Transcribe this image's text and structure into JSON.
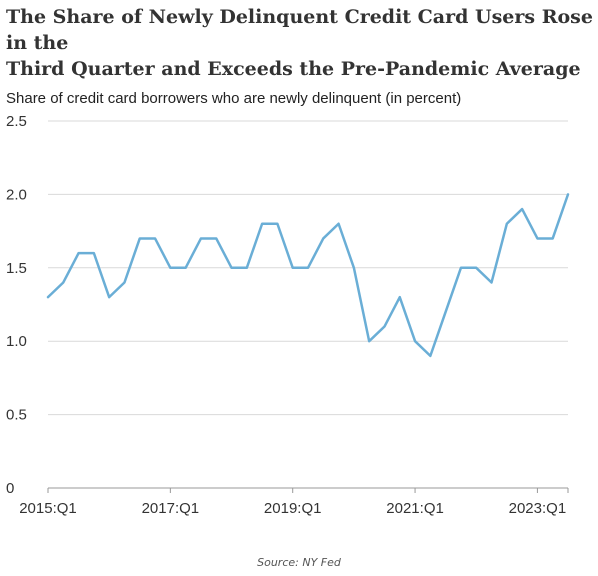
{
  "chart_data": {
    "type": "line",
    "title_lines": [
      "The Share of Newly Delinquent Credit Card Users Rose in the",
      "Third Quarter and Exceeds the Pre-Pandemic Average"
    ],
    "ylabel": "Share of credit card borrowers who are newly delinquent (in percent)",
    "xlabel": "",
    "ylim": [
      0,
      2.5
    ],
    "yticks": [
      "0",
      "0.5",
      "1.0",
      "1.5",
      "2.0",
      "2.5"
    ],
    "ytick_values": [
      0,
      0.5,
      1.0,
      1.5,
      2.0,
      2.5
    ],
    "xtick_labels": [
      "2015:Q1",
      "2017:Q1",
      "2019:Q1",
      "2021:Q1",
      "2023:Q1"
    ],
    "xtick_indices": [
      0,
      8,
      16,
      24,
      32
    ],
    "grid": true,
    "x": [
      "2015:Q1",
      "2015:Q2",
      "2015:Q3",
      "2015:Q4",
      "2016:Q1",
      "2016:Q2",
      "2016:Q3",
      "2016:Q4",
      "2017:Q1",
      "2017:Q2",
      "2017:Q3",
      "2017:Q4",
      "2018:Q1",
      "2018:Q2",
      "2018:Q3",
      "2018:Q4",
      "2019:Q1",
      "2019:Q2",
      "2019:Q3",
      "2019:Q4",
      "2020:Q1",
      "2020:Q2",
      "2020:Q3",
      "2020:Q4",
      "2021:Q1",
      "2021:Q2",
      "2021:Q3",
      "2021:Q4",
      "2022:Q1",
      "2022:Q2",
      "2022:Q3",
      "2022:Q4",
      "2023:Q1",
      "2023:Q2",
      "2023:Q3"
    ],
    "series": [
      {
        "color": "#6aaed6",
        "values": [
          1.3,
          1.4,
          1.6,
          1.6,
          1.3,
          1.4,
          1.7,
          1.7,
          1.5,
          1.5,
          1.7,
          1.7,
          1.5,
          1.5,
          1.8,
          1.8,
          1.5,
          1.5,
          1.7,
          1.8,
          1.5,
          1.0,
          1.1,
          1.3,
          1.0,
          0.9,
          1.2,
          1.5,
          1.5,
          1.4,
          1.8,
          1.9,
          1.7,
          1.7,
          2.0
        ]
      }
    ],
    "source": "Source: NY Fed"
  }
}
